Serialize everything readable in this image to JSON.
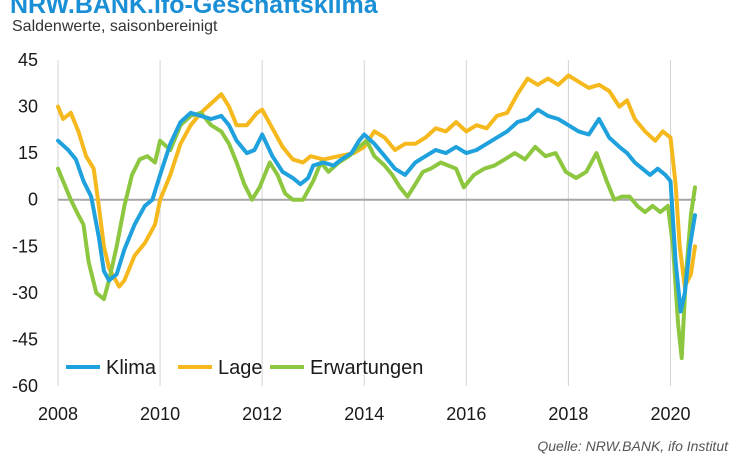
{
  "header": {
    "title": "NRW.BANK.ifo-Geschäftsklima",
    "subtitle": "Saldenwerte, saisonbereinigt",
    "source": "Quelle: NRW.BANK, ifo Institut"
  },
  "chart_data": {
    "type": "line",
    "title": "NRW.BANK.ifo-Geschäftsklima",
    "subtitle": "Saldenwerte, saisonbereinigt",
    "xlabel": "",
    "ylabel": "",
    "xlim": [
      2008,
      2020.5
    ],
    "ylim": [
      -60,
      45
    ],
    "x_ticks": [
      "2008",
      "2010",
      "2012",
      "2014",
      "2016",
      "2018",
      "2020"
    ],
    "y_ticks": [
      "45",
      "30",
      "15",
      "0",
      "-15",
      "-30",
      "-45",
      "-60"
    ],
    "grid": "vertical",
    "legend": "bottom-left",
    "series": [
      {
        "name": "Klima",
        "color": "#1ea1dc",
        "points": [
          [
            2008.0,
            19
          ],
          [
            2008.2,
            16
          ],
          [
            2008.35,
            13
          ],
          [
            2008.5,
            6
          ],
          [
            2008.65,
            1
          ],
          [
            2008.8,
            -12
          ],
          [
            2008.9,
            -23
          ],
          [
            2009.0,
            -26
          ],
          [
            2009.15,
            -24
          ],
          [
            2009.3,
            -16
          ],
          [
            2009.5,
            -8
          ],
          [
            2009.7,
            -2
          ],
          [
            2009.85,
            0
          ],
          [
            2010.0,
            8
          ],
          [
            2010.2,
            18
          ],
          [
            2010.4,
            25
          ],
          [
            2010.6,
            28
          ],
          [
            2010.8,
            27
          ],
          [
            2011.0,
            26
          ],
          [
            2011.2,
            27
          ],
          [
            2011.35,
            24
          ],
          [
            2011.5,
            19
          ],
          [
            2011.7,
            15
          ],
          [
            2011.85,
            16
          ],
          [
            2012.0,
            21
          ],
          [
            2012.2,
            14
          ],
          [
            2012.4,
            9
          ],
          [
            2012.6,
            7
          ],
          [
            2012.75,
            5
          ],
          [
            2012.9,
            7
          ],
          [
            2013.0,
            11
          ],
          [
            2013.2,
            12
          ],
          [
            2013.4,
            11
          ],
          [
            2013.55,
            13
          ],
          [
            2013.75,
            15
          ],
          [
            2013.9,
            19
          ],
          [
            2014.0,
            21
          ],
          [
            2014.2,
            18
          ],
          [
            2014.4,
            14
          ],
          [
            2014.6,
            10
          ],
          [
            2014.8,
            8
          ],
          [
            2015.0,
            12
          ],
          [
            2015.2,
            14
          ],
          [
            2015.4,
            16
          ],
          [
            2015.6,
            15
          ],
          [
            2015.8,
            17
          ],
          [
            2016.0,
            15
          ],
          [
            2016.2,
            16
          ],
          [
            2016.4,
            18
          ],
          [
            2016.6,
            20
          ],
          [
            2016.8,
            22
          ],
          [
            2017.0,
            25
          ],
          [
            2017.2,
            26
          ],
          [
            2017.4,
            29
          ],
          [
            2017.6,
            27
          ],
          [
            2017.8,
            26
          ],
          [
            2018.0,
            24
          ],
          [
            2018.2,
            22
          ],
          [
            2018.4,
            21
          ],
          [
            2018.6,
            26
          ],
          [
            2018.8,
            20
          ],
          [
            2019.0,
            17
          ],
          [
            2019.15,
            15
          ],
          [
            2019.3,
            12
          ],
          [
            2019.45,
            10
          ],
          [
            2019.6,
            8
          ],
          [
            2019.75,
            10
          ],
          [
            2019.9,
            8
          ],
          [
            2020.0,
            6
          ],
          [
            2020.1,
            -20
          ],
          [
            2020.2,
            -36
          ],
          [
            2020.28,
            -30
          ],
          [
            2020.38,
            -15
          ],
          [
            2020.48,
            -5
          ]
        ]
      },
      {
        "name": "Lage",
        "color": "#f5b91e",
        "points": [
          [
            2008.0,
            30
          ],
          [
            2008.1,
            26
          ],
          [
            2008.25,
            28
          ],
          [
            2008.4,
            22
          ],
          [
            2008.55,
            14
          ],
          [
            2008.7,
            10
          ],
          [
            2008.8,
            -2
          ],
          [
            2008.9,
            -15
          ],
          [
            2009.0,
            -22
          ],
          [
            2009.2,
            -28
          ],
          [
            2009.3,
            -26
          ],
          [
            2009.5,
            -18
          ],
          [
            2009.7,
            -14
          ],
          [
            2009.9,
            -8
          ],
          [
            2010.0,
            0
          ],
          [
            2010.2,
            8
          ],
          [
            2010.4,
            18
          ],
          [
            2010.6,
            24
          ],
          [
            2010.8,
            28
          ],
          [
            2011.0,
            31
          ],
          [
            2011.2,
            34
          ],
          [
            2011.35,
            30
          ],
          [
            2011.5,
            24
          ],
          [
            2011.7,
            24
          ],
          [
            2011.9,
            28
          ],
          [
            2012.0,
            29
          ],
          [
            2012.2,
            23
          ],
          [
            2012.4,
            17
          ],
          [
            2012.6,
            13
          ],
          [
            2012.8,
            12
          ],
          [
            2012.95,
            14
          ],
          [
            2013.2,
            13
          ],
          [
            2013.5,
            14
          ],
          [
            2013.8,
            15
          ],
          [
            2014.0,
            17
          ],
          [
            2014.2,
            22
          ],
          [
            2014.4,
            20
          ],
          [
            2014.6,
            16
          ],
          [
            2014.8,
            18
          ],
          [
            2015.0,
            18
          ],
          [
            2015.2,
            20
          ],
          [
            2015.4,
            23
          ],
          [
            2015.6,
            22
          ],
          [
            2015.8,
            25
          ],
          [
            2016.0,
            22
          ],
          [
            2016.2,
            24
          ],
          [
            2016.4,
            23
          ],
          [
            2016.6,
            27
          ],
          [
            2016.8,
            28
          ],
          [
            2017.0,
            34
          ],
          [
            2017.2,
            39
          ],
          [
            2017.4,
            37
          ],
          [
            2017.6,
            39
          ],
          [
            2017.8,
            37
          ],
          [
            2018.0,
            40
          ],
          [
            2018.2,
            38
          ],
          [
            2018.4,
            36
          ],
          [
            2018.6,
            37
          ],
          [
            2018.8,
            35
          ],
          [
            2019.0,
            30
          ],
          [
            2019.15,
            32
          ],
          [
            2019.3,
            26
          ],
          [
            2019.5,
            22
          ],
          [
            2019.7,
            19
          ],
          [
            2019.85,
            22
          ],
          [
            2020.0,
            20
          ],
          [
            2020.1,
            5
          ],
          [
            2020.18,
            -15
          ],
          [
            2020.28,
            -28
          ],
          [
            2020.4,
            -24
          ],
          [
            2020.48,
            -15
          ]
        ]
      },
      {
        "name": "Erwartungen",
        "color": "#8dc63f",
        "points": [
          [
            2008.0,
            10
          ],
          [
            2008.1,
            6
          ],
          [
            2008.25,
            0
          ],
          [
            2008.4,
            -5
          ],
          [
            2008.5,
            -8
          ],
          [
            2008.6,
            -20
          ],
          [
            2008.75,
            -30
          ],
          [
            2008.9,
            -32
          ],
          [
            2009.0,
            -26
          ],
          [
            2009.15,
            -15
          ],
          [
            2009.3,
            -2
          ],
          [
            2009.45,
            8
          ],
          [
            2009.6,
            13
          ],
          [
            2009.75,
            14
          ],
          [
            2009.9,
            12
          ],
          [
            2010.0,
            19
          ],
          [
            2010.2,
            16
          ],
          [
            2010.4,
            24
          ],
          [
            2010.6,
            27
          ],
          [
            2010.8,
            28
          ],
          [
            2011.0,
            24
          ],
          [
            2011.2,
            22
          ],
          [
            2011.35,
            18
          ],
          [
            2011.5,
            12
          ],
          [
            2011.65,
            5
          ],
          [
            2011.8,
            0
          ],
          [
            2011.95,
            4
          ],
          [
            2012.15,
            12
          ],
          [
            2012.3,
            8
          ],
          [
            2012.45,
            2
          ],
          [
            2012.6,
            0
          ],
          [
            2012.8,
            0
          ],
          [
            2013.0,
            6
          ],
          [
            2013.15,
            12
          ],
          [
            2013.3,
            9
          ],
          [
            2013.5,
            12
          ],
          [
            2013.7,
            14
          ],
          [
            2013.9,
            17
          ],
          [
            2014.05,
            19
          ],
          [
            2014.2,
            14
          ],
          [
            2014.4,
            11
          ],
          [
            2014.55,
            8
          ],
          [
            2014.7,
            4
          ],
          [
            2014.85,
            1
          ],
          [
            2015.0,
            5
          ],
          [
            2015.15,
            9
          ],
          [
            2015.3,
            10
          ],
          [
            2015.5,
            12
          ],
          [
            2015.65,
            11
          ],
          [
            2015.8,
            10
          ],
          [
            2015.95,
            4
          ],
          [
            2016.15,
            8
          ],
          [
            2016.35,
            10
          ],
          [
            2016.55,
            11
          ],
          [
            2016.75,
            13
          ],
          [
            2016.95,
            15
          ],
          [
            2017.15,
            13
          ],
          [
            2017.35,
            17
          ],
          [
            2017.55,
            14
          ],
          [
            2017.75,
            15
          ],
          [
            2017.95,
            9
          ],
          [
            2018.15,
            7
          ],
          [
            2018.35,
            9
          ],
          [
            2018.55,
            15
          ],
          [
            2018.75,
            6
          ],
          [
            2018.9,
            0
          ],
          [
            2019.05,
            1
          ],
          [
            2019.2,
            1
          ],
          [
            2019.35,
            -2
          ],
          [
            2019.5,
            -4
          ],
          [
            2019.65,
            -2
          ],
          [
            2019.8,
            -4
          ],
          [
            2019.95,
            -2
          ],
          [
            2020.05,
            -15
          ],
          [
            2020.15,
            -40
          ],
          [
            2020.22,
            -51
          ],
          [
            2020.3,
            -25
          ],
          [
            2020.4,
            -5
          ],
          [
            2020.48,
            4
          ]
        ]
      }
    ]
  }
}
